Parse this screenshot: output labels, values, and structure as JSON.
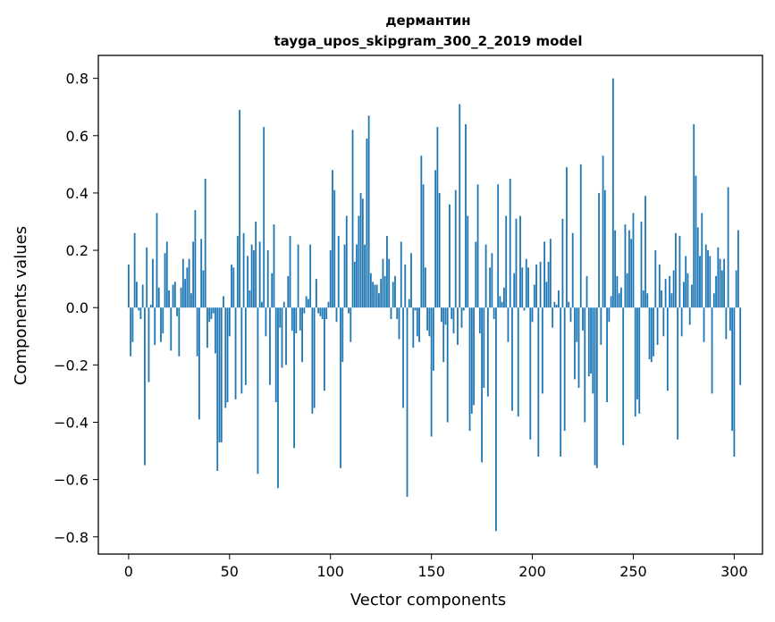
{
  "chart_data": {
    "type": "bar",
    "title": "дермантин",
    "subtitle": "tayga_upos_skipgram_300_2_2019 model",
    "xlabel": "Vector components",
    "ylabel": "Components values",
    "xlim": [
      -15,
      314
    ],
    "ylim": [
      -0.86,
      0.88
    ],
    "xticks": [
      0,
      50,
      100,
      150,
      200,
      250,
      300
    ],
    "yticks": [
      -0.8,
      -0.6,
      -0.4,
      -0.2,
      0.0,
      0.2,
      0.4,
      0.6,
      0.8
    ],
    "ytick_labels": [
      "−0.8",
      "−0.6",
      "−0.4",
      "−0.2",
      "0.0",
      "0.2",
      "0.4",
      "0.6",
      "0.8"
    ],
    "grid": false,
    "bar_color": "#1f77b4",
    "values": [
      0.15,
      -0.17,
      -0.12,
      0.26,
      0.09,
      -0.01,
      -0.04,
      0.08,
      -0.55,
      0.21,
      -0.26,
      0.01,
      0.17,
      -0.13,
      0.33,
      0.07,
      -0.12,
      -0.09,
      0.19,
      0.23,
      0.06,
      -0.15,
      0.08,
      0.09,
      -0.03,
      -0.17,
      0.07,
      0.17,
      0.1,
      0.14,
      0.17,
      0.05,
      0.23,
      0.34,
      -0.17,
      -0.39,
      0.24,
      0.13,
      0.45,
      -0.14,
      -0.05,
      -0.04,
      -0.02,
      -0.16,
      -0.57,
      -0.47,
      -0.47,
      0.04,
      -0.35,
      -0.33,
      -0.1,
      0.15,
      0.14,
      -0.32,
      0.25,
      0.69,
      -0.3,
      0.26,
      -0.27,
      0.18,
      0.06,
      0.22,
      0.2,
      0.3,
      -0.58,
      0.23,
      0.02,
      0.63,
      -0.1,
      0.2,
      -0.27,
      0.12,
      0.29,
      -0.33,
      -0.63,
      -0.07,
      -0.21,
      0.02,
      -0.2,
      0.11,
      0.25,
      -0.08,
      -0.49,
      -0.09,
      0.22,
      -0.08,
      -0.19,
      -0.02,
      0.04,
      0.03,
      0.22,
      -0.37,
      -0.35,
      0.1,
      -0.02,
      -0.03,
      -0.04,
      -0.29,
      -0.04,
      0.02,
      0.2,
      0.48,
      0.41,
      -0.05,
      0.25,
      -0.56,
      -0.19,
      0.22,
      0.32,
      -0.02,
      -0.12,
      0.62,
      0.16,
      0.22,
      0.32,
      0.4,
      0.38,
      0.22,
      0.59,
      0.67,
      0.12,
      0.09,
      0.08,
      0.08,
      0.05,
      0.1,
      0.17,
      0.11,
      0.25,
      0.17,
      -0.04,
      0.09,
      0.11,
      -0.04,
      -0.11,
      0.23,
      -0.35,
      0.15,
      -0.66,
      0.03,
      0.19,
      -0.14,
      -0.01,
      -0.1,
      -0.12,
      0.53,
      0.43,
      0.14,
      -0.08,
      -0.1,
      -0.45,
      -0.22,
      0.48,
      0.63,
      0.4,
      -0.05,
      -0.19,
      -0.06,
      -0.4,
      0.36,
      -0.04,
      -0.09,
      0.41,
      -0.13,
      0.71,
      -0.07,
      -0.01,
      0.64,
      0.32,
      -0.43,
      -0.37,
      -0.34,
      0.23,
      0.43,
      -0.09,
      -0.54,
      -0.28,
      0.22,
      -0.31,
      0.14,
      0.19,
      -0.04,
      -0.78,
      0.43,
      0.04,
      0.02,
      0.07,
      0.32,
      -0.12,
      0.45,
      -0.36,
      0.12,
      0.31,
      -0.38,
      0.32,
      0.14,
      -0.01,
      0.17,
      0.14,
      -0.46,
      -0.05,
      0.08,
      0.15,
      -0.52,
      0.16,
      -0.3,
      0.23,
      0.09,
      0.16,
      0.24,
      -0.07,
      0.02,
      0.01,
      0.06,
      -0.52,
      0.31,
      -0.43,
      0.49,
      0.02,
      -0.05,
      0.26,
      -0.25,
      -0.12,
      -0.28,
      0.5,
      -0.08,
      -0.4,
      0.11,
      -0.24,
      -0.23,
      -0.3,
      -0.55,
      -0.56,
      0.4,
      -0.13,
      0.53,
      0.41,
      -0.33,
      -0.05,
      0.04,
      0.8,
      0.27,
      0.11,
      0.05,
      0.07,
      -0.48,
      0.29,
      0.12,
      0.27,
      0.24,
      0.33,
      -0.38,
      -0.32,
      -0.37,
      0.3,
      0.06,
      0.39,
      0.05,
      -0.18,
      -0.19,
      -0.17,
      0.2,
      -0.13,
      0.15,
      0.06,
      -0.1,
      0.1,
      -0.29,
      0.11,
      0.05,
      0.13,
      0.26,
      -0.46,
      0.25,
      -0.1,
      0.09,
      0.18,
      0.12,
      -0.06,
      0.08,
      0.64,
      0.46,
      0.28,
      0.18,
      0.33,
      -0.12,
      0.22,
      0.2,
      0.18,
      -0.3,
      0.05,
      0.11,
      0.21,
      0.17,
      0.13,
      0.17,
      -0.11,
      0.42,
      -0.08,
      -0.43,
      -0.52,
      0.13,
      0.27,
      -0.27
    ]
  }
}
